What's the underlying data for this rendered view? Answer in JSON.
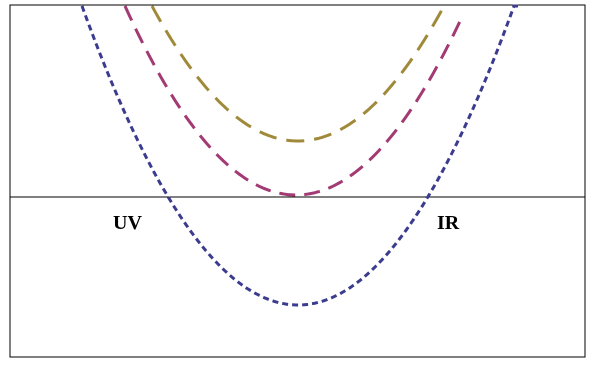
{
  "labels": {
    "left": "UV",
    "right": "IR"
  },
  "colors": {
    "frame": "#000000",
    "axis_line": "#000000",
    "curve_deep": "#3b3b8f",
    "curve_middle": "#a23a73",
    "curve_shallow": "#a08a3a",
    "background": "#ffffff"
  },
  "diagram": {
    "description_free": true,
    "curves": [
      {
        "name": "",
        "color_key": "curve_deep",
        "style": "short-dash",
        "minimum_relative_to_axis": "below"
      },
      {
        "name": "",
        "color_key": "curve_middle",
        "style": "long-dash",
        "minimum_relative_to_axis": "touching"
      },
      {
        "name": "",
        "color_key": "curve_shallow",
        "style": "long-dash",
        "minimum_relative_to_axis": "above"
      }
    ]
  }
}
